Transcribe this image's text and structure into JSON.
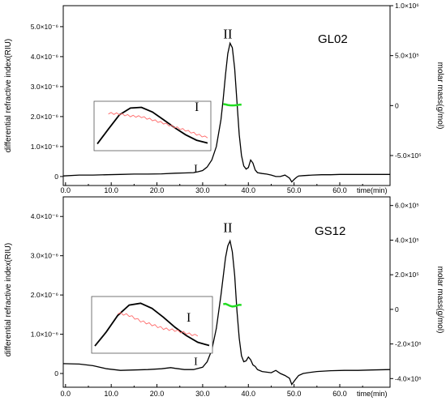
{
  "chart_data": [
    {
      "type": "line",
      "sample_label": "GL02",
      "ylabel": "differential refractive index(RIU)",
      "y2label": "molar mass(g/mol)",
      "xlabel": "time(min)",
      "xlim": [
        -0.5,
        71
      ],
      "ylim": [
        -0.3,
        5.7
      ],
      "y2lim": [
        -0.8,
        1.0
      ],
      "x_ticks": [
        "0.0",
        "10.0",
        "20.0",
        "30.0",
        "40.0",
        "50.0",
        "60.0"
      ],
      "x_tick_values": [
        0,
        10,
        20,
        30,
        40,
        50,
        60
      ],
      "y_ticks": [
        "0",
        "1.0×10⁻⁶",
        "2.0×10⁻⁶",
        "3.0×10⁻⁶",
        "4.0×10⁻⁶",
        "5.0×10⁻⁶"
      ],
      "y_tick_values": [
        0,
        1,
        2,
        3,
        4,
        5
      ],
      "y2_ticks": [
        "-5.0×10⁵",
        "0",
        "5.0×10⁵",
        "1.0×10⁶"
      ],
      "y2_tick_values": [
        -0.5,
        0,
        0.5,
        1.0
      ],
      "peak_labels": [
        {
          "text": "II",
          "x": 35.5,
          "y": 4.6
        },
        {
          "text": "I",
          "x": 28.5,
          "y": 0.15
        }
      ],
      "inset_label": "I",
      "ri_trace": {
        "x": [
          -0.5,
          3,
          6,
          9,
          12,
          15,
          18,
          21,
          24,
          26,
          28,
          29,
          30,
          31,
          32,
          33,
          34,
          34.5,
          35,
          35.5,
          36,
          36.5,
          37,
          37.5,
          38,
          38.5,
          39,
          39.5,
          40,
          40.5,
          41,
          41.5,
          42,
          43,
          44,
          45,
          46,
          47,
          48,
          49,
          49.5,
          50,
          50.5,
          51,
          52,
          54,
          56,
          58,
          60,
          62,
          65,
          68,
          71
        ],
        "y": [
          0.02,
          0.05,
          0.05,
          0.06,
          0.07,
          0.08,
          0.08,
          0.09,
          0.11,
          0.12,
          0.13,
          0.16,
          0.2,
          0.32,
          0.55,
          1.0,
          1.9,
          2.6,
          3.4,
          4.1,
          4.45,
          4.3,
          3.6,
          2.5,
          1.4,
          0.7,
          0.35,
          0.25,
          0.3,
          0.55,
          0.45,
          0.22,
          0.13,
          0.1,
          0.08,
          0.05,
          0.0,
          0.0,
          0.05,
          -0.05,
          -0.18,
          -0.1,
          -0.03,
          0.02,
          0.03,
          0.05,
          0.06,
          0.06,
          0.07,
          0.07,
          0.07,
          0.07,
          0.07
        ]
      },
      "molar_mass_trace": {
        "x": [
          34.5,
          35,
          35.5,
          36,
          36.5,
          37,
          37.5,
          38,
          38.5
        ],
        "y": [
          0.015,
          0.012,
          0.006,
          0.003,
          0.002,
          0.003,
          0.005,
          0.008,
          0.01
        ]
      },
      "inset_ri": {
        "x": [
          0,
          0.1,
          0.2,
          0.3,
          0.4,
          0.5,
          0.6,
          0.7,
          0.8,
          0.9,
          1.0
        ],
        "y": [
          0.05,
          0.42,
          0.78,
          0.95,
          0.97,
          0.85,
          0.66,
          0.46,
          0.28,
          0.14,
          0.07
        ]
      },
      "inset_mm": {
        "x": [
          0.1,
          0.2,
          0.3,
          0.4,
          0.5,
          0.6,
          0.7,
          0.8,
          0.9,
          1.0
        ],
        "y": [
          0.82,
          0.8,
          0.75,
          0.73,
          0.65,
          0.57,
          0.47,
          0.39,
          0.29,
          0.2
        ]
      }
    },
    {
      "type": "line",
      "sample_label": "GS12",
      "ylabel": "differential refractive index(RIU)",
      "y2label": "molar mass(g/mol)",
      "xlabel": "time(min)",
      "xlim": [
        -0.5,
        71
      ],
      "ylim": [
        -0.35,
        4.5
      ],
      "y2lim": [
        -0.45,
        0.65
      ],
      "x_ticks": [
        "0.0",
        "10.0",
        "20.0",
        "30.0",
        "40.0",
        "50.0",
        "60.0"
      ],
      "x_tick_values": [
        0,
        10,
        20,
        30,
        40,
        50,
        60
      ],
      "y_ticks": [
        "0",
        "1.0×10⁻⁶",
        "2.0×10⁻⁶",
        "3.0×10⁻⁶",
        "4.0×10⁻⁶"
      ],
      "y_tick_values": [
        0,
        1,
        2,
        3,
        4
      ],
      "y2_ticks": [
        "-4.0×10⁵",
        "-2.0×10⁵",
        "0",
        "2.0×10⁵",
        "4.0×10⁵",
        "6.0×10⁵"
      ],
      "y2_tick_values": [
        -0.4,
        -0.2,
        0,
        0.2,
        0.4,
        0.6
      ],
      "peak_labels": [
        {
          "text": "II",
          "x": 35.5,
          "y": 3.6
        },
        {
          "text": "I",
          "x": 28.5,
          "y": 0.22
        }
      ],
      "inset_label": "I",
      "ri_trace": {
        "x": [
          -0.5,
          3,
          6,
          9,
          12,
          15,
          18,
          21,
          23,
          24,
          26,
          28,
          30,
          31,
          32,
          33,
          34,
          35,
          35.5,
          36,
          36.5,
          37,
          37.5,
          38,
          38.5,
          39,
          39.5,
          40,
          40.5,
          41,
          41.5,
          42,
          43,
          45,
          46,
          47,
          48,
          49,
          49.5,
          50,
          50.5,
          51,
          52,
          53,
          55,
          58,
          61,
          64,
          67,
          71
        ],
        "y": [
          0.25,
          0.24,
          0.2,
          0.12,
          0.08,
          0.09,
          0.1,
          0.12,
          0.15,
          0.13,
          0.1,
          0.1,
          0.16,
          0.3,
          0.6,
          1.15,
          2.0,
          2.95,
          3.25,
          3.38,
          3.1,
          2.5,
          1.6,
          0.9,
          0.45,
          0.3,
          0.32,
          0.42,
          0.35,
          0.22,
          0.18,
          0.1,
          0.05,
          0.02,
          0.08,
          0.0,
          -0.05,
          -0.12,
          -0.28,
          -0.2,
          -0.12,
          -0.05,
          0.0,
          0.02,
          0.05,
          0.07,
          0.08,
          0.08,
          0.09,
          0.1
        ]
      },
      "molar_mass_trace": {
        "x": [
          34.5,
          35,
          35.5,
          36,
          36.5,
          37,
          37.5,
          38,
          38.5
        ],
        "y": [
          0.03,
          0.032,
          0.026,
          0.02,
          0.016,
          0.018,
          0.022,
          0.026,
          0.025
        ]
      },
      "inset_ri": {
        "x": [
          0,
          0.1,
          0.2,
          0.3,
          0.4,
          0.5,
          0.6,
          0.7,
          0.8,
          0.9,
          1.0
        ],
        "y": [
          0.05,
          0.35,
          0.7,
          0.92,
          0.96,
          0.85,
          0.66,
          0.45,
          0.27,
          0.13,
          0.06
        ]
      },
      "inset_mm": {
        "x": [
          0.2,
          0.3,
          0.4,
          0.5,
          0.6,
          0.7,
          0.8,
          0.9
        ],
        "y": [
          0.75,
          0.7,
          0.58,
          0.5,
          0.42,
          0.38,
          0.32,
          0.26
        ]
      }
    }
  ]
}
